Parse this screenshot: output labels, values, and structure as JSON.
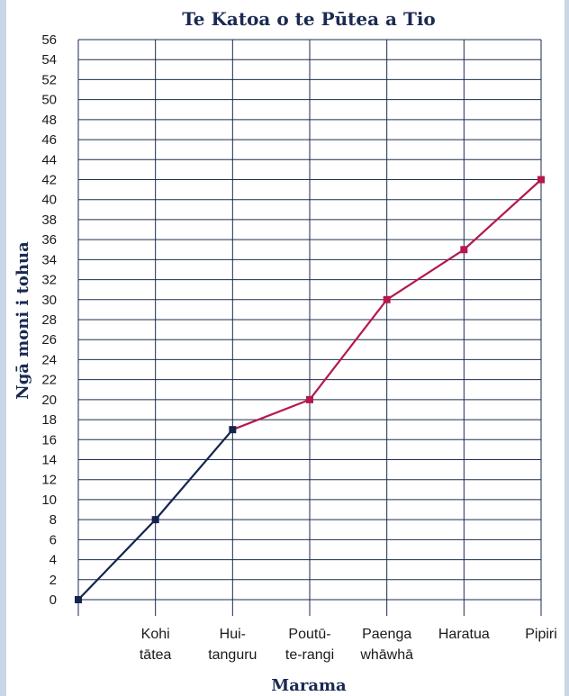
{
  "chart_data": {
    "type": "line",
    "title": "Te Katoa o te Pūtea a Tio",
    "xlabel": "Marama",
    "ylabel": "Ngā moni i tohua",
    "ylim": [
      0,
      56
    ],
    "ytick_step": 2,
    "grid": true,
    "categories": [
      {
        "lines": [
          "",
          ""
        ]
      },
      {
        "lines": [
          "Kohi",
          "tātea"
        ]
      },
      {
        "lines": [
          "Hui-",
          "tanguru"
        ]
      },
      {
        "lines": [
          "Poutū-",
          "te-rangi"
        ]
      },
      {
        "lines": [
          "Paenga",
          "whāwhā"
        ]
      },
      {
        "lines": [
          "Haratua",
          ""
        ]
      },
      {
        "lines": [
          "Pipiri",
          ""
        ]
      }
    ],
    "values": [
      0,
      8,
      17,
      20,
      30,
      35,
      42
    ],
    "segment_colors": {
      "first": "#15244f",
      "second": "#b5184d"
    },
    "color_change_index": 2
  }
}
